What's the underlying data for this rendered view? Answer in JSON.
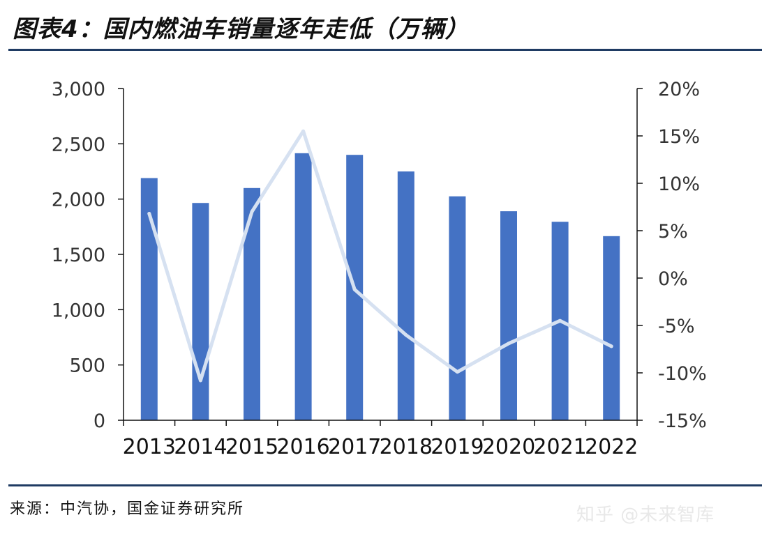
{
  "header": {
    "title": "图表4：国内燃油车销量逐年走低（万辆）"
  },
  "footer": {
    "source": "来源：中汽协，国金证券研究所",
    "watermark": "知乎 @未来智库"
  },
  "colors": {
    "bar": "#4472c4",
    "line": "#d6e1f1",
    "axis": "#111111",
    "rule": "#1f3b63"
  },
  "chart_data": {
    "type": "bar",
    "categories": [
      "2013",
      "2014",
      "2015",
      "2016",
      "2017",
      "2018",
      "2019",
      "2020",
      "2021",
      "2022"
    ],
    "series": [
      {
        "type": "bar",
        "axis": "left",
        "values": [
          2190,
          1965,
          2100,
          2415,
          2400,
          2250,
          2025,
          1890,
          1795,
          1665
        ]
      },
      {
        "type": "line",
        "axis": "right",
        "values": [
          6.8,
          -10.8,
          7.0,
          15.5,
          -1.2,
          -6.0,
          -9.9,
          -6.9,
          -4.5,
          -7.2
        ]
      }
    ],
    "y_left": {
      "min": 0,
      "max": 3000,
      "ticks": [
        0,
        500,
        1000,
        1500,
        2000,
        2500,
        3000
      ],
      "tick_labels": [
        "0",
        "500",
        "1,000",
        "1,500",
        "2,000",
        "2,500",
        "3,000"
      ]
    },
    "y_right": {
      "min": -15,
      "max": 20,
      "ticks": [
        -15,
        -10,
        -5,
        0,
        5,
        10,
        15,
        20
      ],
      "tick_labels": [
        "-15%",
        "-10%",
        "-5%",
        "0%",
        "5%",
        "10%",
        "15%",
        "20%"
      ]
    },
    "grid": false,
    "legend": "none"
  }
}
